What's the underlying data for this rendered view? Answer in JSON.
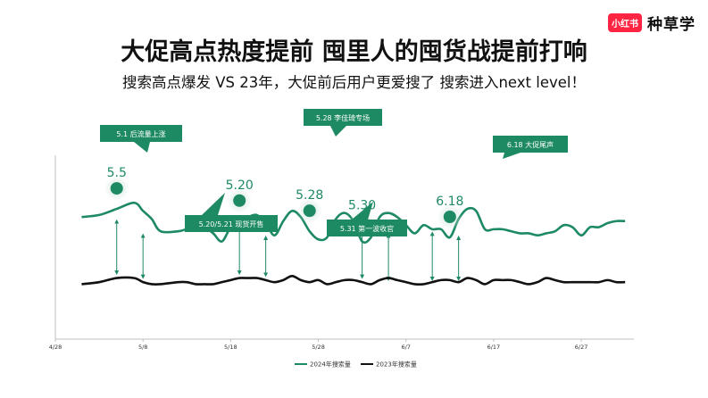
{
  "brand": {
    "logo": "小红书",
    "name": "种草学"
  },
  "header": {
    "title": "大促高点热度提前  囤里人的囤货战提前打响",
    "subtitle": "搜索高点爆发 VS 23年，大促前后用户更爱搜了 搜索进入next level！"
  },
  "colors": {
    "s2024": "#1e8a64",
    "s2023": "#111111",
    "callout": "#1e8a64",
    "marker_glow": "#cfe6dc"
  },
  "chart_data": {
    "type": "line",
    "x_ticks": [
      "4/28",
      "5/8",
      "5/18",
      "5/28",
      "6/7",
      "6/17",
      "6/27"
    ],
    "xlim": [
      0,
      66
    ],
    "ylim": [
      0,
      100
    ],
    "grid": false,
    "legend_position": "bottom-center",
    "series": [
      {
        "name": "2024年搜索量",
        "color": "#1e8a64",
        "values": [
          [
            3,
            60
          ],
          [
            5,
            61
          ],
          [
            7,
            64
          ],
          [
            9,
            67
          ],
          [
            10,
            63
          ],
          [
            11,
            59
          ],
          [
            12,
            53
          ],
          [
            14,
            53
          ],
          [
            15,
            54
          ],
          [
            16,
            54
          ],
          [
            17,
            55
          ],
          [
            18,
            52
          ],
          [
            19,
            48
          ],
          [
            20,
            55
          ],
          [
            21,
            58
          ],
          [
            22,
            60
          ],
          [
            23,
            61
          ],
          [
            24,
            57
          ],
          [
            25,
            51
          ],
          [
            26,
            58
          ],
          [
            27,
            63
          ],
          [
            28,
            60
          ],
          [
            29,
            53
          ],
          [
            30,
            49
          ],
          [
            31,
            50
          ],
          [
            32,
            59
          ],
          [
            33,
            62
          ],
          [
            34,
            58
          ],
          [
            35,
            48
          ],
          [
            36,
            50
          ],
          [
            37,
            60
          ],
          [
            38,
            62
          ],
          [
            39,
            60
          ],
          [
            40,
            56
          ],
          [
            41,
            52
          ],
          [
            42,
            56
          ],
          [
            43,
            54
          ],
          [
            44,
            54
          ],
          [
            45,
            50
          ],
          [
            46,
            59
          ],
          [
            47,
            64
          ],
          [
            48,
            63
          ],
          [
            49,
            54
          ],
          [
            50,
            54
          ],
          [
            51,
            54
          ],
          [
            52,
            53
          ],
          [
            53,
            52
          ],
          [
            54,
            52
          ],
          [
            55,
            51
          ],
          [
            56,
            52
          ],
          [
            57,
            53
          ],
          [
            58,
            56
          ],
          [
            59,
            55
          ],
          [
            60,
            51
          ],
          [
            61,
            55
          ],
          [
            62,
            55
          ],
          [
            63,
            57
          ],
          [
            64,
            58
          ],
          [
            65,
            58
          ]
        ]
      },
      {
        "name": "2023年搜索量",
        "color": "#111111",
        "values": [
          [
            3,
            27
          ],
          [
            5,
            28
          ],
          [
            7,
            30
          ],
          [
            9,
            30
          ],
          [
            10,
            28
          ],
          [
            11,
            27
          ],
          [
            12,
            27
          ],
          [
            14,
            28
          ],
          [
            15,
            28
          ],
          [
            16,
            27
          ],
          [
            17,
            27
          ],
          [
            18,
            27
          ],
          [
            19,
            28
          ],
          [
            20,
            29
          ],
          [
            21,
            30
          ],
          [
            22,
            30
          ],
          [
            23,
            30
          ],
          [
            24,
            29
          ],
          [
            25,
            28
          ],
          [
            26,
            29
          ],
          [
            27,
            31
          ],
          [
            28,
            29
          ],
          [
            29,
            28
          ],
          [
            30,
            29
          ],
          [
            31,
            27
          ],
          [
            32,
            28
          ],
          [
            33,
            29
          ],
          [
            34,
            29
          ],
          [
            35,
            28
          ],
          [
            36,
            27
          ],
          [
            37,
            29
          ],
          [
            38,
            30
          ],
          [
            39,
            29
          ],
          [
            40,
            28
          ],
          [
            41,
            27
          ],
          [
            42,
            27
          ],
          [
            43,
            28
          ],
          [
            44,
            29
          ],
          [
            45,
            29
          ],
          [
            46,
            28
          ],
          [
            47,
            30
          ],
          [
            48,
            29
          ],
          [
            49,
            27
          ],
          [
            50,
            29
          ],
          [
            51,
            29
          ],
          [
            52,
            29
          ],
          [
            53,
            28
          ],
          [
            54,
            27
          ],
          [
            55,
            28
          ],
          [
            56,
            30
          ],
          [
            57,
            29
          ],
          [
            58,
            28
          ],
          [
            59,
            28
          ],
          [
            60,
            28
          ],
          [
            61,
            28
          ],
          [
            62,
            28
          ],
          [
            63,
            29
          ],
          [
            64,
            28
          ],
          [
            65,
            28
          ]
        ]
      }
    ],
    "peaks": [
      {
        "label": "5.5",
        "x": 7
      },
      {
        "label": "5.20",
        "x": 21
      },
      {
        "label": "5.28",
        "x": 29
      },
      {
        "label": "5.30",
        "x": 35
      },
      {
        "label": "6.18",
        "x": 45
      }
    ],
    "comparisons": [
      {
        "x": 7,
        "top": 60,
        "bottom": 30
      },
      {
        "x": 10,
        "top": 53,
        "bottom": 28
      },
      {
        "x": 21,
        "top": 60,
        "bottom": 30
      },
      {
        "x": 24,
        "top": 52,
        "bottom": 29
      },
      {
        "x": 35,
        "top": 60,
        "bottom": 28
      },
      {
        "x": 38,
        "top": 53,
        "bottom": 27
      },
      {
        "x": 43,
        "top": 54,
        "bottom": 27
      },
      {
        "x": 46,
        "top": 52,
        "bottom": 27
      }
    ],
    "annotations": [
      {
        "text": "5.1 后流量上涨"
      },
      {
        "text": "5.20/5.21 现货开售"
      },
      {
        "text": "5.28 李佳琦专场"
      },
      {
        "text": "5.31 第一波收官"
      },
      {
        "text": "6.18 大促尾声"
      }
    ]
  }
}
